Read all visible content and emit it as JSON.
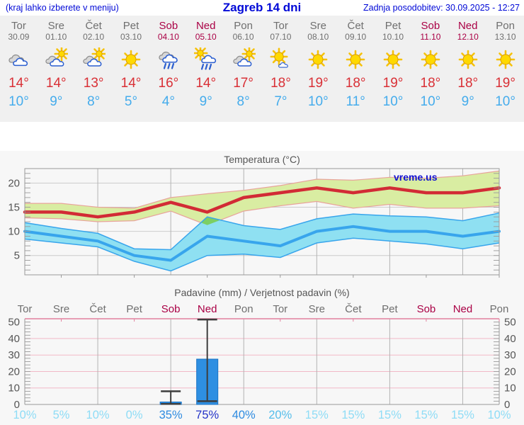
{
  "header": {
    "left_note": "(kraj lahko izberete v meniju)",
    "title": "Zagreb 14 dni",
    "updated": "Zadnja posodobitev: 30.09.2025 - 12:27"
  },
  "watermark": "vreme.us",
  "forecast": {
    "days": [
      {
        "name": "Tor",
        "date": "30.09",
        "weekend": false,
        "icon": "cloudy",
        "tmax": "14°",
        "tmin": "10°"
      },
      {
        "name": "Sre",
        "date": "01.10",
        "weekend": false,
        "icon": "partly",
        "tmax": "14°",
        "tmin": "9°"
      },
      {
        "name": "Čet",
        "date": "02.10",
        "weekend": false,
        "icon": "partly",
        "tmax": "13°",
        "tmin": "8°"
      },
      {
        "name": "Pet",
        "date": "03.10",
        "weekend": false,
        "icon": "sunny",
        "tmax": "14°",
        "tmin": "5°"
      },
      {
        "name": "Sob",
        "date": "04.10",
        "weekend": true,
        "icon": "rain",
        "tmax": "16°",
        "tmin": "4°"
      },
      {
        "name": "Ned",
        "date": "05.10",
        "weekend": true,
        "icon": "sun-rain",
        "tmax": "14°",
        "tmin": "9°"
      },
      {
        "name": "Pon",
        "date": "06.10",
        "weekend": false,
        "icon": "partly",
        "tmax": "17°",
        "tmin": "8°"
      },
      {
        "name": "Tor",
        "date": "07.10",
        "weekend": false,
        "icon": "mostly-sunny",
        "tmax": "18°",
        "tmin": "7°"
      },
      {
        "name": "Sre",
        "date": "08.10",
        "weekend": false,
        "icon": "sunny",
        "tmax": "19°",
        "tmin": "10°"
      },
      {
        "name": "Čet",
        "date": "09.10",
        "weekend": false,
        "icon": "sunny",
        "tmax": "18°",
        "tmin": "11°"
      },
      {
        "name": "Pet",
        "date": "10.10",
        "weekend": false,
        "icon": "sunny",
        "tmax": "19°",
        "tmin": "10°"
      },
      {
        "name": "Sob",
        "date": "11.10",
        "weekend": true,
        "icon": "sunny",
        "tmax": "18°",
        "tmin": "10°"
      },
      {
        "name": "Ned",
        "date": "12.10",
        "weekend": true,
        "icon": "sunny",
        "tmax": "18°",
        "tmin": "9°"
      },
      {
        "name": "Pon",
        "date": "13.10",
        "weekend": false,
        "icon": "sunny",
        "tmax": "19°",
        "tmin": "10°"
      }
    ]
  },
  "chart_data": [
    {
      "type": "line",
      "title": "Temperatura (°C)",
      "ylim": [
        1,
        23
      ],
      "yticks": [
        5,
        10,
        15,
        20
      ],
      "grid_on": true,
      "x_day_labels": [
        "Tor",
        "Sre",
        "Čet",
        "Pet",
        "Sob",
        "Ned",
        "Pon",
        "Tor",
        "Sre",
        "Čet",
        "Pet",
        "Sob",
        "Ned",
        "Pon"
      ],
      "series": [
        {
          "name": "max temperatura",
          "color": "#d22b35",
          "values": [
            14,
            14,
            13,
            14,
            16,
            14,
            17,
            18,
            19,
            18,
            19,
            18,
            18,
            19
          ]
        },
        {
          "name": "min temperatura",
          "color": "#38a5ec",
          "values": [
            10,
            9,
            8,
            5,
            4,
            9,
            8,
            7,
            10,
            11,
            10,
            10,
            9,
            10
          ]
        }
      ],
      "bands": [
        {
          "name": "max range",
          "fill": "#d9eda2",
          "edge": "#e8a49b",
          "upper": [
            15.8,
            15.8,
            15,
            14.8,
            17,
            17.8,
            18.5,
            19.5,
            20.8,
            20.6,
            21.2,
            21,
            21.5,
            22.5
          ],
          "lower": [
            12.8,
            12.6,
            12,
            12.2,
            14.2,
            11.3,
            14.2,
            15.3,
            16.2,
            14.8,
            15.6,
            14.8,
            14.8,
            15.3
          ]
        },
        {
          "name": "min range",
          "fill": "#8fe0f2",
          "edge": "#38a5ec",
          "upper": [
            11.8,
            10.6,
            9.6,
            6.4,
            6.2,
            13,
            11.2,
            10.4,
            12.6,
            13.6,
            13.2,
            13,
            12.2,
            13.8
          ],
          "lower": [
            8.4,
            7.6,
            6.8,
            3.8,
            1.8,
            5,
            5.3,
            4.6,
            7.6,
            8.6,
            8,
            7.4,
            6.4,
            7.6
          ]
        }
      ],
      "band_overlap": {
        "fill": "#7ccf63",
        "points": [
          [
            4.825,
            11.81
          ],
          [
            5,
            13
          ],
          [
            5.362,
            12.35
          ],
          [
            5,
            11.3
          ]
        ]
      }
    },
    {
      "type": "bar",
      "title": "Padavine (mm) / Verjetnost padavin (%)",
      "ylim": [
        0,
        52
      ],
      "yticks": [
        0,
        10,
        20,
        30,
        40,
        50
      ],
      "categories": [
        "Tor",
        "Sre",
        "Čet",
        "Pet",
        "Sob",
        "Ned",
        "Pon",
        "Tor",
        "Sre",
        "Čet",
        "Pet",
        "Sob",
        "Ned",
        "Pon"
      ],
      "weekend": [
        false,
        false,
        false,
        false,
        true,
        true,
        false,
        false,
        false,
        false,
        false,
        true,
        true,
        false
      ],
      "precip_mm": [
        0,
        0,
        0,
        0,
        1.5,
        27.5,
        0,
        0,
        0,
        0,
        0,
        0,
        0,
        0
      ],
      "whiskers": [
        null,
        null,
        null,
        null,
        {
          "min": 0.3,
          "max": 8
        },
        {
          "min": 2,
          "max": 51.5
        },
        null,
        null,
        null,
        null,
        null,
        null,
        null,
        null
      ],
      "probability_pct": [
        "10%",
        "5%",
        "10%",
        "0%",
        "35%",
        "75%",
        "40%",
        "20%",
        "15%",
        "15%",
        "15%",
        "15%",
        "15%",
        "10%"
      ],
      "bar_color": "#2e8fe2"
    }
  ],
  "colors": {
    "header_blue": "#0008d7",
    "weekday": "#6f6f6f",
    "weekend": "#aa0045",
    "tmax": "#d93036",
    "tmin": "#45acec",
    "axis_text": "#555555",
    "grid_gray": "#b3b3b3",
    "grid_pink": "#f2b9c7",
    "whisker": "#3d3d3d",
    "prob_low": "#8edcf6",
    "prob_mid": "#55bdea",
    "prob_med": "#2e8be0",
    "prob_high": "#2433c8"
  }
}
